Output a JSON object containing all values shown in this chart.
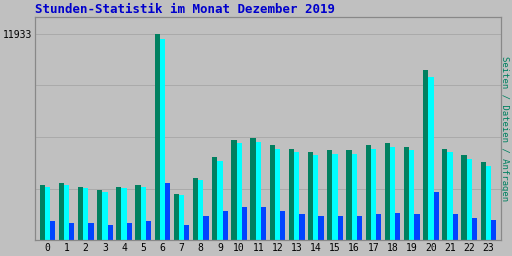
{
  "title": "Stunden-Statistik im Monat Dezember 2019",
  "title_color": "#0000cc",
  "background_color": "#c0c0c0",
  "plot_bg_color": "#c0c0c0",
  "ylabel_right": "Seiten / Dateien / Anfragen",
  "ylabel_right_color": "#008060",
  "ytick_label": "11933",
  "ytick_value": 11933,
  "hours": [
    0,
    1,
    2,
    3,
    4,
    5,
    6,
    7,
    8,
    9,
    10,
    11,
    12,
    13,
    14,
    15,
    16,
    17,
    18,
    19,
    20,
    21,
    22,
    23
  ],
  "seiten": [
    3200,
    3300,
    3100,
    2900,
    3100,
    3200,
    11933,
    2700,
    3600,
    4800,
    5800,
    5900,
    5500,
    5300,
    5100,
    5200,
    5200,
    5500,
    5600,
    5400,
    9800,
    5300,
    4900,
    4500
  ],
  "dateien": [
    3100,
    3200,
    3000,
    2800,
    3000,
    3100,
    11600,
    2600,
    3500,
    4600,
    5600,
    5700,
    5300,
    5100,
    4900,
    5000,
    5000,
    5300,
    5400,
    5200,
    9400,
    5100,
    4700,
    4300
  ],
  "anfragen": [
    1100,
    1000,
    1000,
    900,
    1000,
    1100,
    3300,
    900,
    1400,
    1700,
    1900,
    1900,
    1700,
    1500,
    1400,
    1400,
    1400,
    1500,
    1600,
    1500,
    2800,
    1500,
    1300,
    1200
  ],
  "color_seiten": "#008060",
  "color_dateien": "#00ffff",
  "color_anfragen": "#0044ff",
  "grid_color": "#aaaaaa",
  "border_color": "#888888",
  "font_family": "monospace"
}
